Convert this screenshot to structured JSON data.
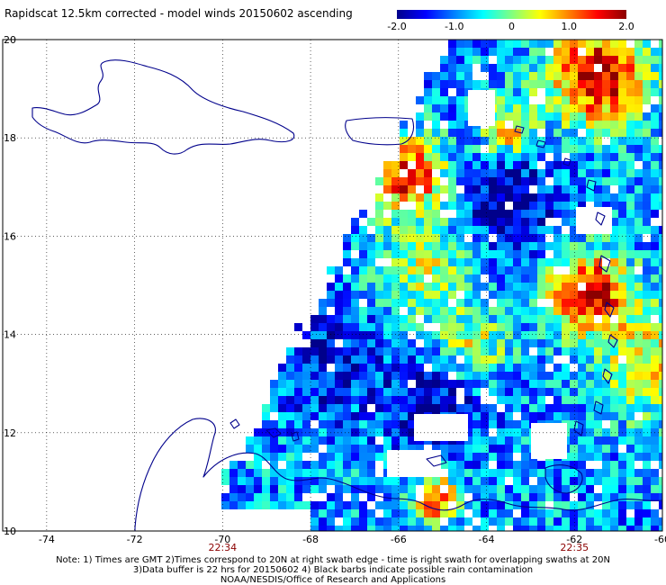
{
  "title": "Rapidscat 12.5km corrected - model winds 20150602 ascending",
  "colorbar": {
    "labels": [
      "-2.0",
      "-1.0",
      "0",
      "1.0",
      "2.0"
    ],
    "values": [
      -2.0,
      -1.0,
      0,
      1.0,
      2.0
    ],
    "colors": [
      "#00008b",
      "#0000ff",
      "#0080ff",
      "#00ffff",
      "#80ff80",
      "#ffff00",
      "#ff8000",
      "#ff0000",
      "#8b0000"
    ]
  },
  "map": {
    "lon_range": [
      -75,
      -60
    ],
    "lat_range": [
      10,
      20
    ],
    "x_ticks": [
      {
        "value": -74,
        "label": "-74"
      },
      {
        "value": -72,
        "label": "-72"
      },
      {
        "value": -70,
        "label": "-70"
      },
      {
        "value": -68,
        "label": "-68"
      },
      {
        "value": -66,
        "label": "-66"
      },
      {
        "value": -64,
        "label": "-64"
      },
      {
        "value": -62,
        "label": "-62"
      },
      {
        "value": -60,
        "label": "-60"
      }
    ],
    "y_ticks": [
      {
        "value": 20,
        "label": "20"
      },
      {
        "value": 18,
        "label": "18"
      },
      {
        "value": 16,
        "label": "16"
      },
      {
        "value": 14,
        "label": "14"
      },
      {
        "value": 12,
        "label": "12"
      },
      {
        "value": 10,
        "label": "10"
      }
    ],
    "times": [
      {
        "lon": -70,
        "label": "22:34"
      },
      {
        "lon": -62,
        "label": "22:35"
      }
    ],
    "coastline_color": "#00008b",
    "grid": "dotted"
  },
  "notes": {
    "line1": "Note: 1) Times are GMT 2)Times correspond to 20N at right swath edge - time is right swath for overlapping swaths at 20N",
    "line2": "3)Data buffer is 22 hrs for 20150602 4) Black barbs indicate possible rain contamination",
    "line3": "NOAA/NESDIS/Office of Research and Applications"
  }
}
